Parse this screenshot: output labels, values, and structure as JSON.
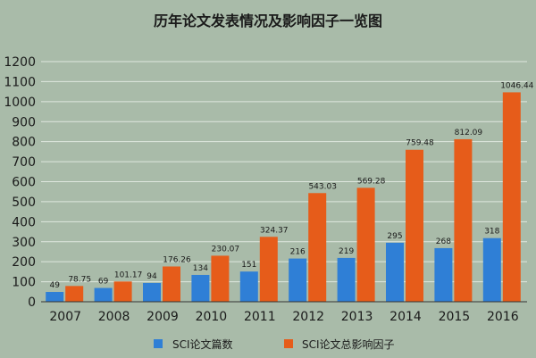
{
  "colors": {
    "background": "#a9bba9",
    "grid": "#dfe7df",
    "axis": "#333333",
    "series1": "#2f7fd6",
    "series2": "#e65c1a",
    "text": "#1a1a1a"
  },
  "chart_data": {
    "type": "bar",
    "title": "历年论文发表情况及影响因子一览图",
    "categories": [
      "2007",
      "2008",
      "2009",
      "2010",
      "2011",
      "2012",
      "2013",
      "2014",
      "2015",
      "2016"
    ],
    "series": [
      {
        "name": "SCI论文篇数",
        "values": [
          49,
          69,
          94,
          134,
          151,
          216,
          219,
          295,
          268,
          318
        ],
        "labels": [
          "49",
          "69",
          "94",
          "134",
          "151",
          "216",
          "219",
          "295",
          "268",
          "318"
        ]
      },
      {
        "name": "SCI论文总影响因子",
        "values": [
          78.75,
          101.17,
          176.26,
          230.07,
          324.37,
          543.03,
          569.28,
          759.48,
          812.09,
          1046.44
        ],
        "labels": [
          "78.75",
          "101.17",
          "176.26",
          "230.07",
          "324.37",
          "543.03",
          "569.28",
          "759.48",
          "812.09",
          "1046.44"
        ]
      }
    ],
    "ylim": [
      0,
      1200
    ],
    "yticks": [
      "0",
      "100",
      "200",
      "300",
      "400",
      "500",
      "600",
      "700",
      "800",
      "900",
      "1000",
      "1100",
      "1200"
    ],
    "grid": true,
    "legend": "bottom"
  }
}
